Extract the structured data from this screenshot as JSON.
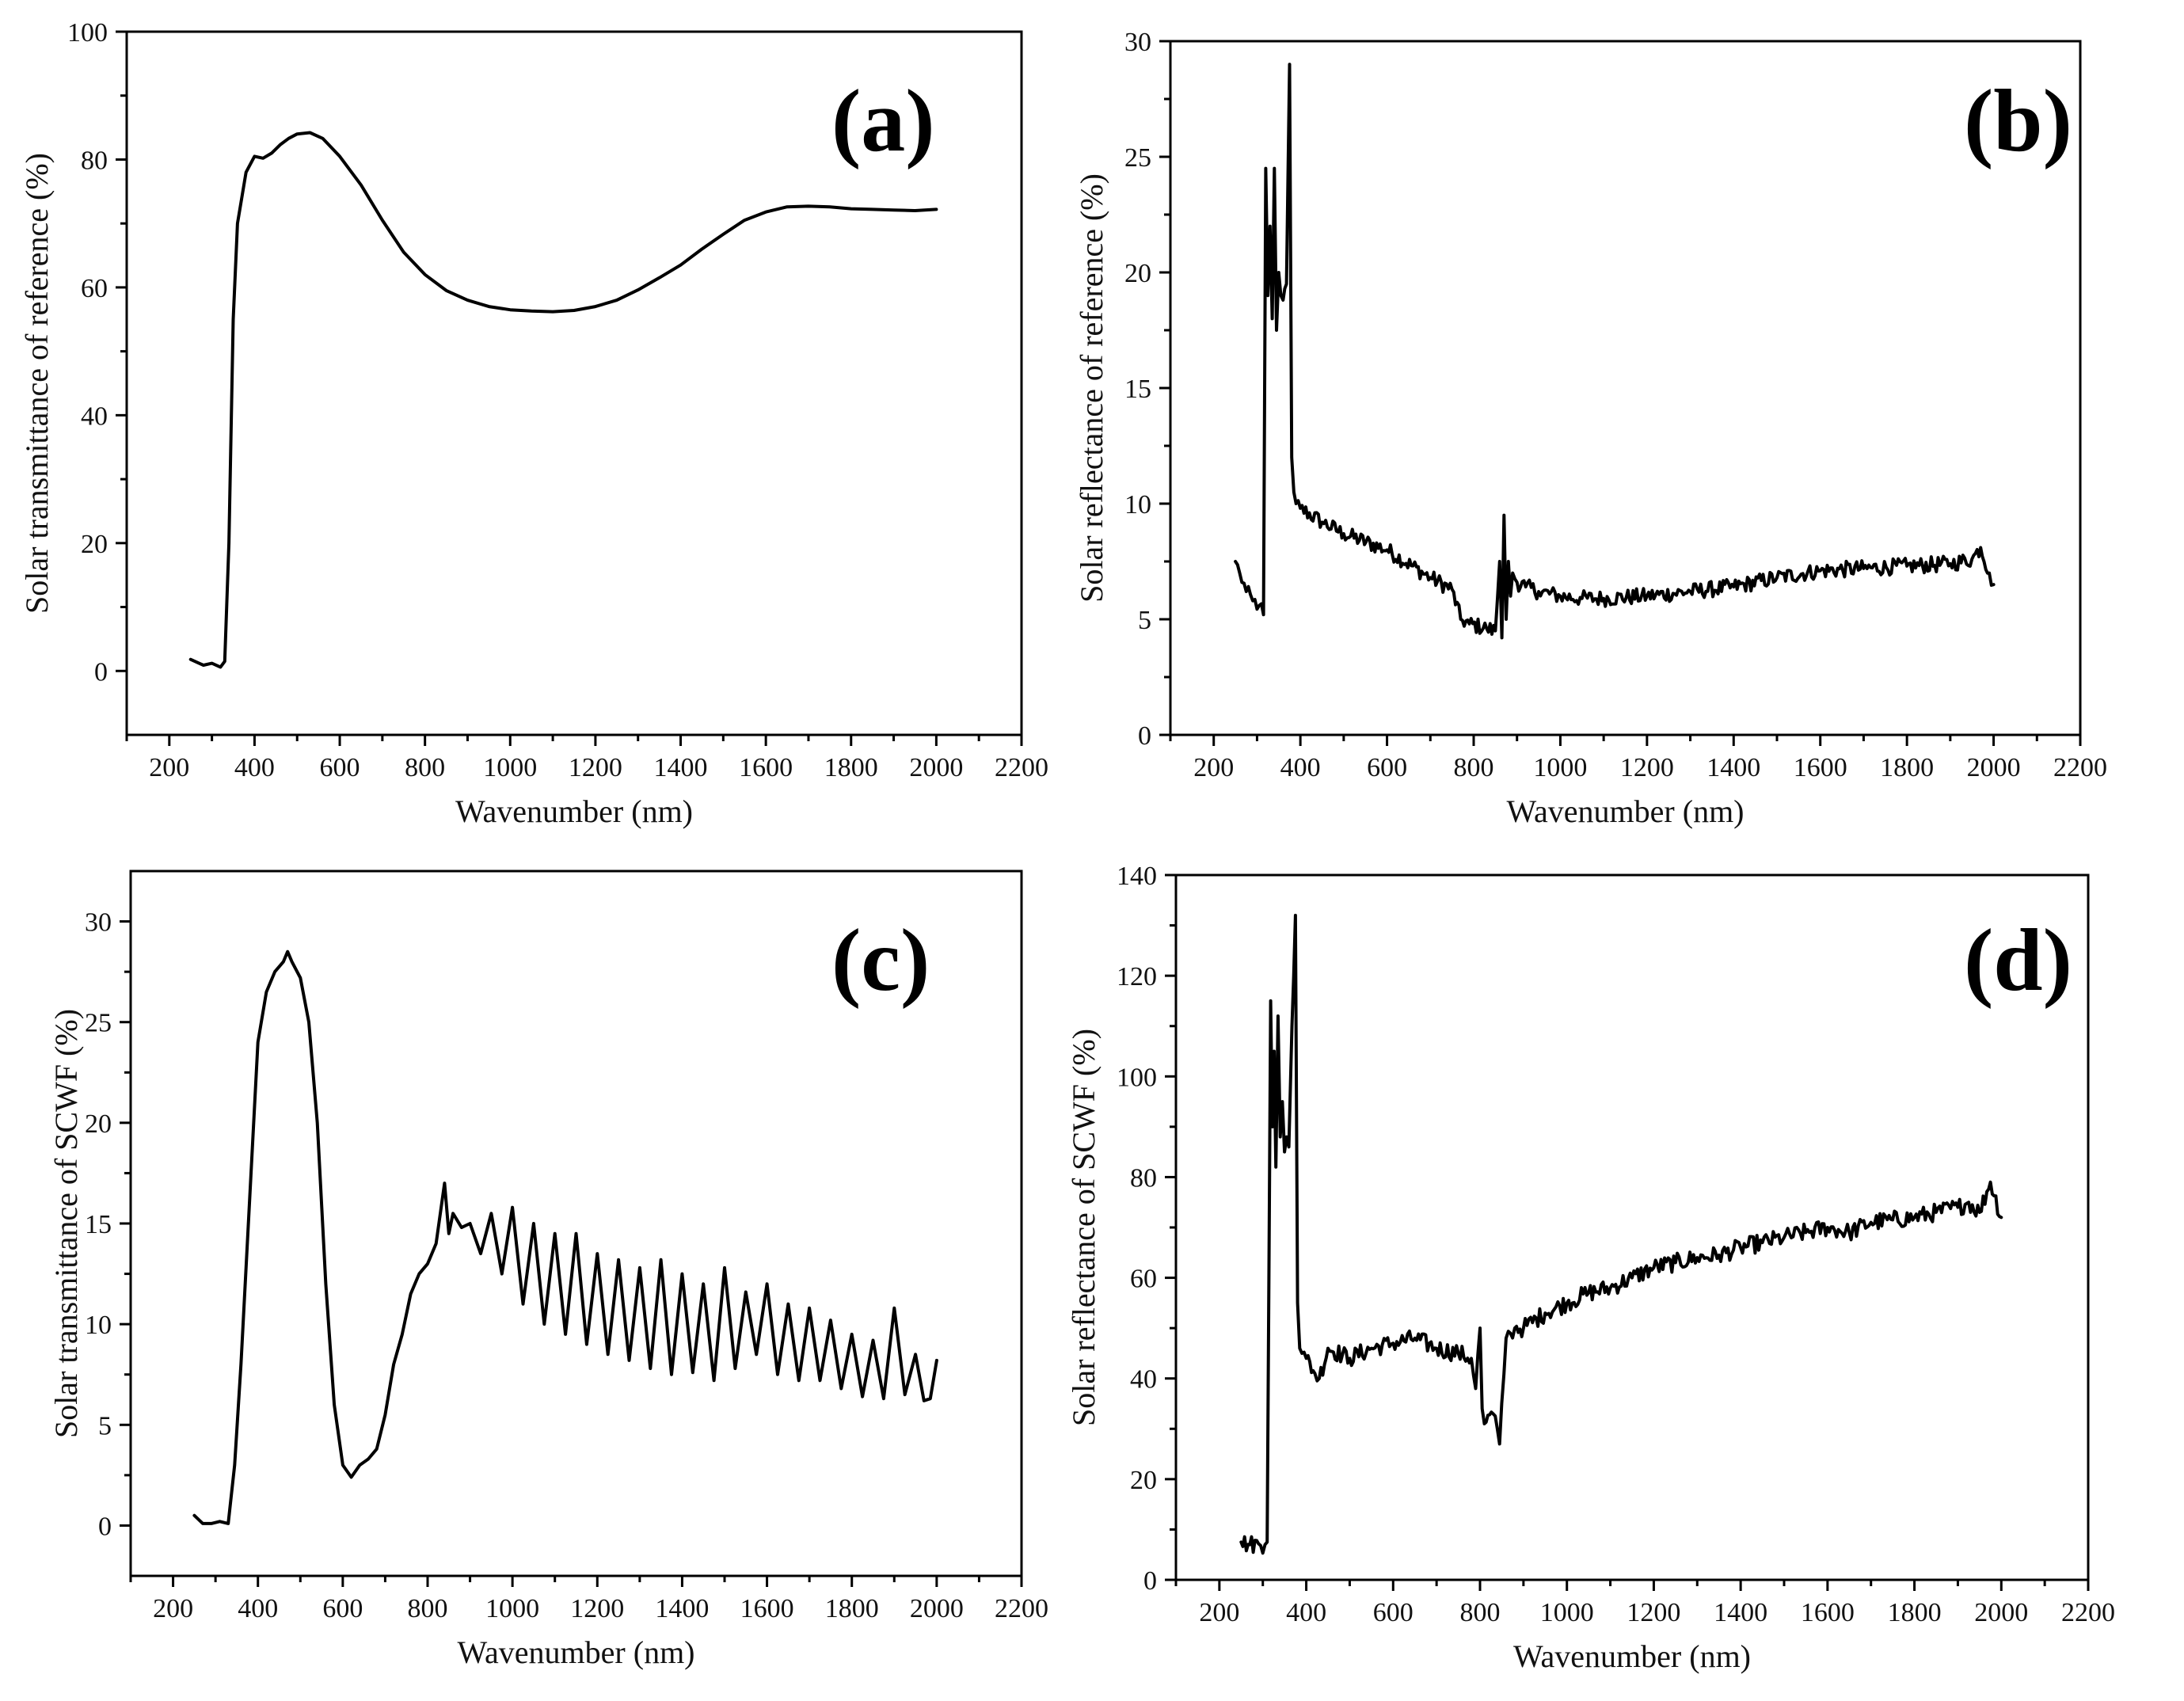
{
  "chart_data": [
    {
      "id": "a",
      "type": "line",
      "panel_label": "(a)",
      "xlabel": "Wavenumber (nm)",
      "ylabel": "Solar transmittance of reference (%)",
      "xlim": [
        100,
        2200
      ],
      "ylim": [
        -10,
        100
      ],
      "xticks": [
        200,
        400,
        600,
        800,
        1000,
        1200,
        1400,
        1600,
        1800,
        2000,
        2200
      ],
      "yticks": [
        0,
        20,
        40,
        60,
        80,
        100
      ],
      "series": [
        {
          "name": "reference transmittance",
          "noise": 0,
          "x": [
            250,
            280,
            300,
            320,
            330,
            340,
            350,
            360,
            370,
            380,
            400,
            420,
            440,
            460,
            480,
            500,
            530,
            560,
            600,
            650,
            700,
            750,
            800,
            850,
            900,
            950,
            1000,
            1050,
            1100,
            1150,
            1200,
            1250,
            1300,
            1350,
            1400,
            1450,
            1500,
            1550,
            1600,
            1650,
            1700,
            1750,
            1800,
            1850,
            1900,
            1950,
            2000
          ],
          "y": [
            1.8,
            0.9,
            1.2,
            0.6,
            1.5,
            20,
            55,
            70,
            74,
            78,
            80.5,
            80.2,
            81,
            82.3,
            83.3,
            84,
            84.2,
            83.3,
            80.5,
            76,
            70.5,
            65.5,
            62,
            59.5,
            58,
            57,
            56.5,
            56.3,
            56.2,
            56.4,
            57,
            58,
            59.6,
            61.5,
            63.5,
            66,
            68.3,
            70.5,
            71.8,
            72.6,
            72.7,
            72.6,
            72.3,
            72.2,
            72.1,
            72,
            72.2
          ]
        }
      ]
    },
    {
      "id": "b",
      "type": "line",
      "panel_label": "(b)",
      "xlabel": "Wavenumber (nm)",
      "ylabel": "Solar reflectance of reference (%)",
      "xlim": [
        100,
        2200
      ],
      "ylim": [
        0,
        30
      ],
      "xticks": [
        200,
        400,
        600,
        800,
        1000,
        1200,
        1400,
        1600,
        1800,
        2000,
        2200
      ],
      "yticks": [
        0,
        5,
        10,
        15,
        20,
        25,
        30
      ],
      "series": [
        {
          "name": "reference reflectance",
          "noise": 0.35,
          "x": [
            250,
            260,
            275,
            290,
            305,
            315,
            320,
            325,
            330,
            335,
            340,
            345,
            350,
            355,
            360,
            368,
            375,
            380,
            385,
            390,
            400,
            450,
            500,
            600,
            700,
            750,
            770,
            790,
            830,
            850,
            860,
            865,
            870,
            875,
            880,
            885,
            890,
            900,
            920,
            950,
            1000,
            1050,
            1100,
            1200,
            1300,
            1400,
            1500,
            1600,
            1700,
            1800,
            1900,
            1950,
            1970,
            1990,
            2000
          ],
          "y": [
            7.5,
            7.0,
            6.2,
            5.8,
            5.6,
            5.2,
            24.5,
            19,
            22,
            18,
            24.5,
            17.5,
            20,
            19,
            18.8,
            19.5,
            29,
            12,
            10.5,
            10,
            9.8,
            9.2,
            8.7,
            8,
            6.8,
            6.3,
            5,
            4.8,
            4.6,
            4.5,
            7.5,
            4.2,
            9.5,
            5,
            7.5,
            6,
            7,
            6.6,
            6.4,
            6.2,
            6.0,
            5.9,
            5.9,
            6.0,
            6.2,
            6.4,
            6.8,
            7.1,
            7.2,
            7.3,
            7.4,
            7.6,
            8.1,
            7.0,
            6.5
          ]
        }
      ]
    },
    {
      "id": "c",
      "type": "line",
      "panel_label": "(c)",
      "xlabel": "Wavenumber (nm)",
      "ylabel": "Solar transmittance of SCWF (%)",
      "xlim": [
        100,
        2200
      ],
      "ylim": [
        -2.5,
        32.5
      ],
      "xticks": [
        200,
        400,
        600,
        800,
        1000,
        1200,
        1400,
        1600,
        1800,
        2000,
        2200
      ],
      "yticks": [
        0,
        5,
        10,
        15,
        20,
        25,
        30
      ],
      "series": [
        {
          "name": "SCWF transmittance",
          "noise": 0,
          "x": [
            250,
            270,
            290,
            310,
            330,
            345,
            360,
            380,
            400,
            420,
            440,
            460,
            470,
            480,
            500,
            520,
            540,
            560,
            580,
            600,
            620,
            640,
            660,
            680,
            700,
            720,
            740,
            760,
            780,
            800,
            820,
            840,
            850,
            860,
            880,
            900,
            925,
            950,
            975,
            1000,
            1025,
            1050,
            1075,
            1100,
            1125,
            1150,
            1175,
            1200,
            1225,
            1250,
            1275,
            1300,
            1325,
            1350,
            1375,
            1400,
            1425,
            1450,
            1475,
            1500,
            1525,
            1550,
            1575,
            1600,
            1625,
            1650,
            1675,
            1700,
            1725,
            1750,
            1775,
            1800,
            1825,
            1850,
            1875,
            1900,
            1925,
            1950,
            1970,
            1985,
            2000
          ],
          "y": [
            0.5,
            0.1,
            0.1,
            0.2,
            0.1,
            3,
            8,
            16,
            24,
            26.5,
            27.5,
            28,
            28.5,
            28,
            27.2,
            25,
            20,
            12,
            6,
            3,
            2.4,
            3,
            3.3,
            3.8,
            5.5,
            8,
            9.5,
            11.5,
            12.5,
            13,
            14,
            17,
            14.5,
            15.5,
            14.8,
            15,
            13.5,
            15.5,
            12.5,
            15.8,
            11,
            15,
            10,
            14.5,
            9.5,
            14.5,
            9,
            13.5,
            8.5,
            13.2,
            8.2,
            12.8,
            7.8,
            13.2,
            7.5,
            12.5,
            7.6,
            12,
            7.2,
            12.8,
            7.8,
            11.6,
            8.5,
            12,
            7.5,
            11,
            7.2,
            10.8,
            7.2,
            10.2,
            6.8,
            9.5,
            6.4,
            9.2,
            6.3,
            10.8,
            6.5,
            8.5,
            6.2,
            6.3,
            8.2
          ]
        }
      ]
    },
    {
      "id": "d",
      "type": "line",
      "panel_label": "(d)",
      "xlabel": "Wavenumber (nm)",
      "ylabel": "Solar reflectance of SCWF (%)",
      "xlim": [
        100,
        2200
      ],
      "ylim": [
        0,
        140
      ],
      "xticks": [
        200,
        400,
        600,
        800,
        1000,
        1200,
        1400,
        1600,
        1800,
        2000,
        2200
      ],
      "yticks": [
        0,
        20,
        40,
        60,
        80,
        100,
        120,
        140
      ],
      "series": [
        {
          "name": "SCWF reflectance",
          "noise": 1.8,
          "x": [
            250,
            270,
            290,
            305,
            310,
            318,
            322,
            326,
            330,
            335,
            340,
            345,
            350,
            355,
            360,
            367,
            375,
            380,
            385,
            390,
            400,
            420,
            430,
            450,
            500,
            550,
            600,
            650,
            700,
            750,
            780,
            790,
            800,
            805,
            810,
            830,
            845,
            850,
            860,
            870,
            880,
            900,
            950,
            1000,
            1050,
            1100,
            1150,
            1200,
            1250,
            1300,
            1350,
            1400,
            1450,
            1500,
            1550,
            1600,
            1650,
            1700,
            1750,
            1800,
            1850,
            1900,
            1925,
            1950,
            1975,
            2000
          ],
          "y": [
            7.5,
            7,
            7.2,
            7,
            7.5,
            115,
            90,
            105,
            82,
            112,
            88,
            95,
            85,
            88,
            86,
            110,
            132,
            55,
            46,
            45,
            44,
            41,
            40,
            46,
            44,
            46,
            47,
            48,
            46,
            45,
            44,
            38,
            50,
            34,
            31,
            33,
            27,
            35,
            48,
            49,
            50,
            50,
            53,
            55,
            57,
            58,
            60,
            62,
            63,
            64,
            64.5,
            66,
            67,
            68,
            69,
            70,
            69,
            71,
            71.5,
            72,
            73,
            74,
            75,
            73,
            79,
            72
          ]
        }
      ]
    }
  ]
}
